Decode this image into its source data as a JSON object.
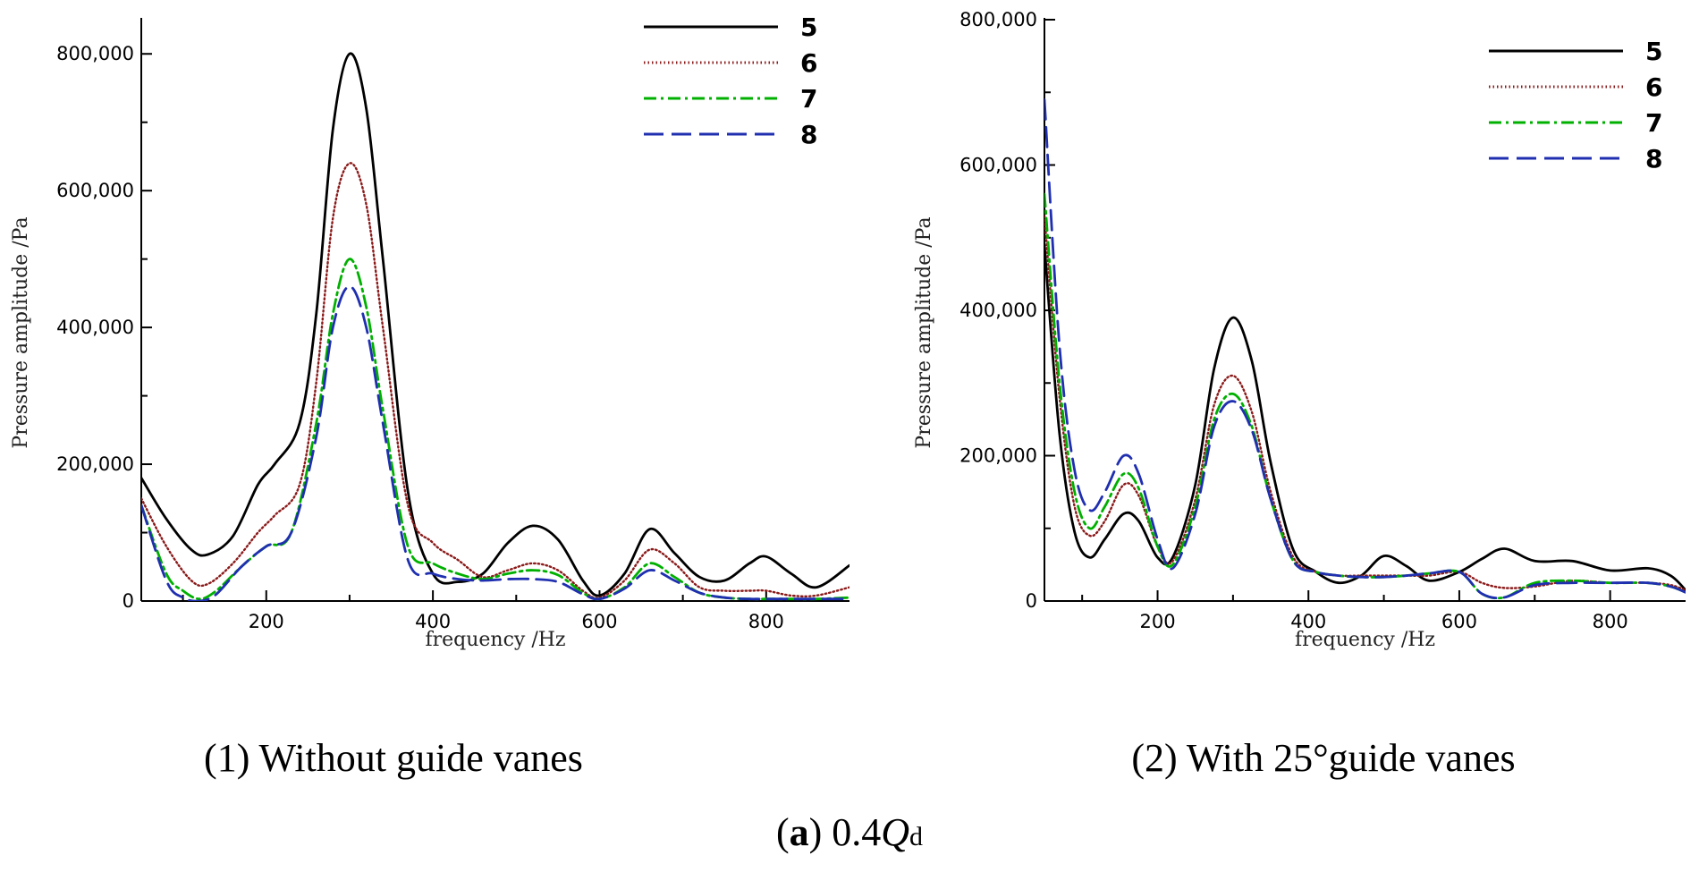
{
  "figure": {
    "caption_label": "a",
    "caption_value": "0.4",
    "caption_symbol": "Q",
    "caption_subscript": "d"
  },
  "chart_data": [
    {
      "type": "line",
      "panel_caption": "(1) Without guide vanes",
      "xlabel": "frequency /Hz",
      "ylabel": "Pressure amplitude /Pa",
      "xlim": [
        50,
        900
      ],
      "ylim": [
        0,
        850000
      ],
      "xticks": [
        200,
        400,
        600,
        800
      ],
      "yticks": [
        0,
        200000,
        400000,
        600000,
        800000
      ],
      "ytick_labels": [
        "0",
        "200,000",
        "400,000",
        "600,000",
        "800,000"
      ],
      "legend_position": "top-right",
      "series": [
        {
          "name": "5",
          "color": "#000000",
          "style": "solid",
          "x": [
            50,
            80,
            110,
            130,
            160,
            190,
            210,
            240,
            260,
            280,
            300,
            320,
            340,
            370,
            400,
            430,
            460,
            490,
            520,
            550,
            580,
            600,
            630,
            660,
            690,
            720,
            750,
            780,
            800,
            830,
            860,
            900
          ],
          "y": [
            180000,
            120000,
            75000,
            68000,
            95000,
            170000,
            200000,
            260000,
            420000,
            690000,
            800000,
            720000,
            500000,
            160000,
            40000,
            28000,
            40000,
            85000,
            110000,
            90000,
            30000,
            8000,
            40000,
            105000,
            70000,
            35000,
            30000,
            55000,
            65000,
            40000,
            20000,
            52000
          ]
        },
        {
          "name": "6",
          "color": "#8b1a1a",
          "style": "dotted",
          "x": [
            50,
            80,
            110,
            130,
            160,
            190,
            210,
            240,
            260,
            280,
            300,
            320,
            340,
            370,
            400,
            430,
            460,
            490,
            520,
            550,
            580,
            600,
            630,
            660,
            690,
            720,
            750,
            780,
            800,
            830,
            860,
            900
          ],
          "y": [
            150000,
            80000,
            30000,
            25000,
            55000,
            100000,
            125000,
            170000,
            320000,
            560000,
            640000,
            580000,
            400000,
            140000,
            85000,
            60000,
            35000,
            45000,
            55000,
            45000,
            15000,
            5000,
            30000,
            75000,
            55000,
            20000,
            15000,
            15000,
            15000,
            8000,
            8000,
            20000
          ]
        },
        {
          "name": "7",
          "color": "#00b000",
          "style": "dashdot",
          "x": [
            50,
            80,
            100,
            120,
            140,
            170,
            200,
            230,
            260,
            280,
            300,
            320,
            340,
            370,
            400,
            430,
            460,
            490,
            520,
            550,
            580,
            600,
            630,
            660,
            690,
            720,
            750,
            780,
            800,
            830,
            860,
            900
          ],
          "y": [
            140000,
            40000,
            15000,
            3000,
            15000,
            50000,
            80000,
            100000,
            260000,
            420000,
            500000,
            430000,
            280000,
            80000,
            55000,
            40000,
            32000,
            40000,
            45000,
            38000,
            12000,
            3000,
            20000,
            55000,
            35000,
            12000,
            5000,
            3000,
            3000,
            3000,
            3000,
            5000
          ]
        },
        {
          "name": "8",
          "color": "#1f2fb0",
          "style": "dashed",
          "x": [
            50,
            80,
            100,
            120,
            140,
            170,
            200,
            230,
            260,
            280,
            300,
            320,
            340,
            370,
            400,
            430,
            460,
            490,
            520,
            550,
            580,
            600,
            630,
            660,
            690,
            720,
            750,
            780,
            800,
            830,
            860,
            900
          ],
          "y": [
            140000,
            30000,
            5000,
            0,
            10000,
            50000,
            80000,
            100000,
            240000,
            400000,
            460000,
            400000,
            260000,
            60000,
            40000,
            32000,
            30000,
            32000,
            32000,
            28000,
            10000,
            3000,
            18000,
            45000,
            30000,
            12000,
            5000,
            3000,
            3000,
            3000,
            3000,
            3000
          ]
        }
      ]
    },
    {
      "type": "line",
      "panel_caption": "(2) With 25°guide vanes",
      "xlabel": "frequency /Hz",
      "ylabel": "Pressure amplitude /Pa",
      "xlim": [
        50,
        900
      ],
      "ylim": [
        0,
        800000
      ],
      "xticks": [
        200,
        400,
        600,
        800
      ],
      "yticks": [
        0,
        200000,
        400000,
        600000,
        800000
      ],
      "ytick_labels": [
        "0",
        "200,000",
        "400,000",
        "600,000",
        "800,000"
      ],
      "legend_position": "top-right",
      "series": [
        {
          "name": "5",
          "color": "#000000",
          "style": "solid",
          "x": [
            50,
            70,
            90,
            110,
            130,
            155,
            175,
            200,
            220,
            250,
            275,
            300,
            325,
            350,
            380,
            410,
            440,
            470,
            500,
            530,
            560,
            600,
            630,
            660,
            700,
            750,
            800,
            850,
            880,
            900
          ],
          "y": [
            490000,
            230000,
            95000,
            60000,
            85000,
            120000,
            110000,
            60000,
            60000,
            160000,
            320000,
            390000,
            330000,
            190000,
            70000,
            40000,
            25000,
            35000,
            62000,
            48000,
            28000,
            40000,
            58000,
            72000,
            55000,
            55000,
            42000,
            45000,
            35000,
            15000
          ]
        },
        {
          "name": "6",
          "color": "#8b1a1a",
          "style": "dotted",
          "x": [
            50,
            70,
            90,
            110,
            130,
            155,
            175,
            200,
            220,
            250,
            275,
            300,
            325,
            350,
            380,
            410,
            440,
            470,
            500,
            530,
            560,
            600,
            630,
            660,
            700,
            750,
            800,
            850,
            880,
            900
          ],
          "y": [
            530000,
            280000,
            130000,
            90000,
            110000,
            160000,
            145000,
            75000,
            55000,
            140000,
            270000,
            310000,
            260000,
            150000,
            60000,
            40000,
            35000,
            35000,
            35000,
            35000,
            35000,
            40000,
            25000,
            18000,
            20000,
            28000,
            25000,
            25000,
            22000,
            15000
          ]
        },
        {
          "name": "7",
          "color": "#00b000",
          "style": "dashdot",
          "x": [
            50,
            70,
            90,
            110,
            130,
            155,
            175,
            200,
            220,
            250,
            275,
            300,
            325,
            350,
            380,
            410,
            440,
            470,
            500,
            530,
            560,
            600,
            630,
            660,
            700,
            750,
            800,
            850,
            880,
            900
          ],
          "y": [
            560000,
            300000,
            150000,
            100000,
            130000,
            175000,
            155000,
            75000,
            50000,
            130000,
            250000,
            285000,
            240000,
            140000,
            55000,
            40000,
            35000,
            33000,
            33000,
            35000,
            38000,
            40000,
            10000,
            5000,
            25000,
            28000,
            25000,
            25000,
            20000,
            12000
          ]
        },
        {
          "name": "8",
          "color": "#1f2fb0",
          "style": "dashed",
          "x": [
            50,
            70,
            90,
            110,
            130,
            155,
            175,
            200,
            220,
            250,
            275,
            300,
            325,
            350,
            380,
            410,
            440,
            470,
            500,
            530,
            560,
            600,
            630,
            660,
            700,
            750,
            800,
            850,
            880,
            900
          ],
          "y": [
            690000,
            350000,
            180000,
            125000,
            150000,
            200000,
            175000,
            85000,
            45000,
            120000,
            240000,
            275000,
            235000,
            140000,
            55000,
            40000,
            35000,
            33000,
            33000,
            35000,
            38000,
            40000,
            10000,
            5000,
            22000,
            25000,
            25000,
            25000,
            20000,
            12000
          ]
        }
      ]
    }
  ]
}
